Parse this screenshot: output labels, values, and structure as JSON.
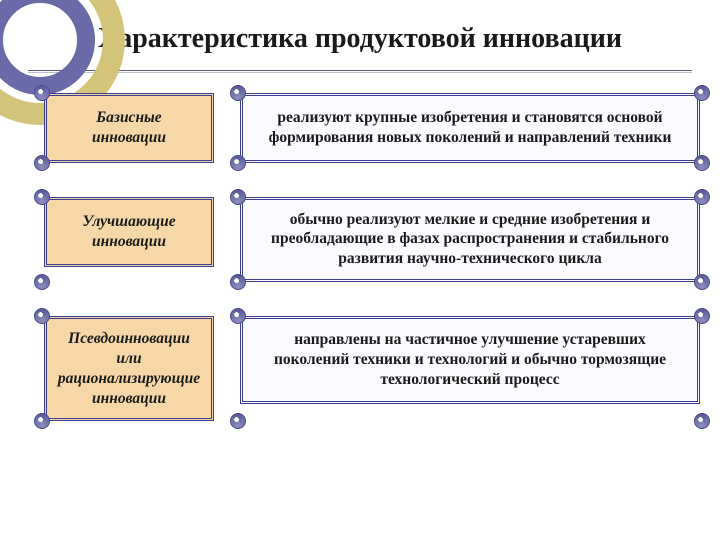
{
  "title": "Характеристика продуктовой инновации",
  "decor": {
    "ring_outer_color": "#d4c47a",
    "ring_inner_color": "#6a6aa8",
    "outer_size": 170,
    "outer_border": 22,
    "inner_size": 110,
    "inner_border": 18
  },
  "colors": {
    "left_bg": "#f5d7a8",
    "right_bg": "#fafaff",
    "border": "#3b3b8f",
    "rule": "#5a5a7a",
    "scroll_end": "#5a5a9a"
  },
  "typography": {
    "title_fontsize": 28,
    "body_fontsize": 15.5,
    "font_family": "Times New Roman"
  },
  "rows": [
    {
      "label": "Базисные инновации",
      "desc": "реализуют крупные изобретения и становятся основой формирования новых поколений и направлений техники"
    },
    {
      "label": "Улучшающие инновации",
      "desc": "обычно реализуют мелкие и средние изобретения и преобладающие в фазах распространения и стабильного развития научно-технического цикла"
    },
    {
      "label": "Псевдоинновации или рационализирующие инновации",
      "desc": "направлены на частичное улучшение устаревших поколений техники и технологий и обычно тормозящие технологический процесс"
    }
  ]
}
